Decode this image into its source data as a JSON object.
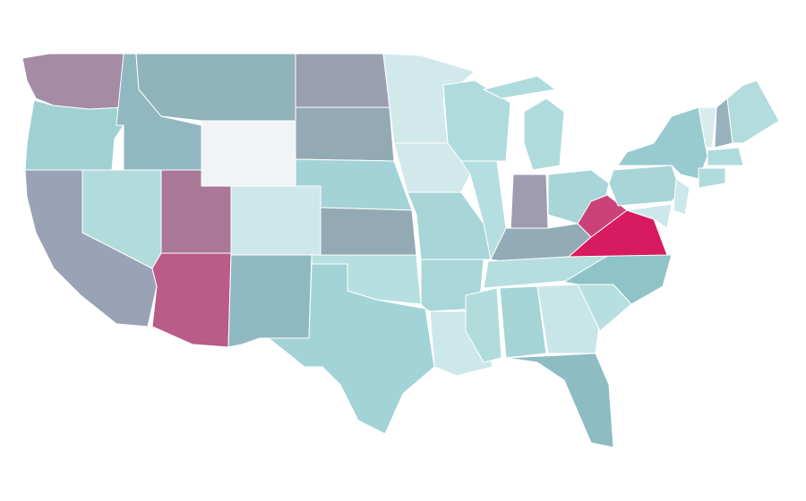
{
  "map": {
    "fills": [
      "#a58ba3",
      "#9fd1d3",
      "#9aa2b5",
      "#b2dcdc",
      "#91b7c0",
      "#91b3bc",
      "#f1f3f4",
      "#a97896",
      "#bb5b87",
      "#cde7ea",
      "#8fb9c1",
      "#9aa0b2",
      "#93aab5",
      "#a3d3d6",
      "#93aab5",
      "#b7dfe0",
      "#a2d3d6",
      "#d2e9ec",
      "#d2e9ec",
      "#a7d5d8",
      "#a9d6d9",
      "#cde8ea",
      "#b0dbdc",
      "#b4dedf",
      "#b0dbdc",
      "#b0dbdc",
      "#9f9bb0",
      "#a7d5d8",
      "#93abb6",
      "#b6dede",
      "#b2dcdc",
      "#a5d4d6",
      "#c8e6e8",
      "#8ebcc3",
      "#b7dfdf",
      "#8ec3c8",
      "#d81b60",
      "#cb4279",
      "#a7d5d8",
      "#97cbcf",
      "#cde8ea",
      "#cde8ea",
      "#d8ecee",
      "#97b2bb",
      "#b3dcdd",
      "#b0dbdc",
      "#b0dbdc"
    ]
  }
}
